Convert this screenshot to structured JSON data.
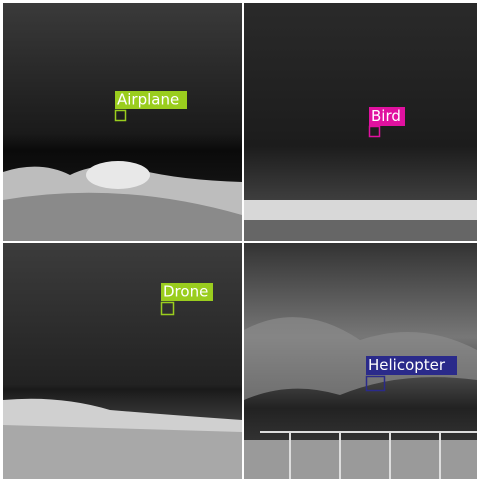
{
  "panels": [
    {
      "label": "Airplane"
    },
    {
      "label": "Bird"
    },
    {
      "label": "Drone"
    },
    {
      "label": "Helicopter"
    }
  ]
}
